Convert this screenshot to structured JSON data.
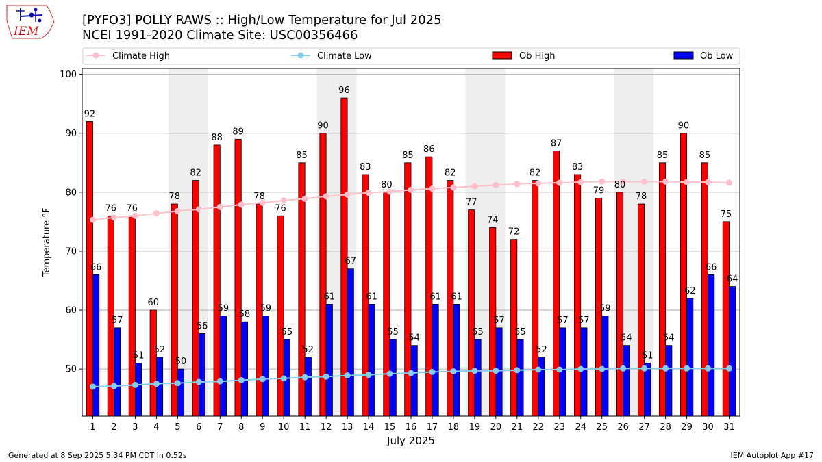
{
  "chart_data": {
    "type": "bar",
    "title": "[PYFO3] POLLY RAWS :: High/Low Temperature for Jul 2025",
    "subtitle": "NCEI 1991-2020 Climate Site: USC00356466",
    "xlabel": "July 2025",
    "ylabel": "Temperature °F",
    "ylim": [
      42,
      101
    ],
    "yticks": [
      50,
      60,
      70,
      80,
      90,
      100
    ],
    "grid": true,
    "legend_position": "top",
    "categories": [
      "1",
      "2",
      "3",
      "4",
      "5",
      "6",
      "7",
      "8",
      "9",
      "10",
      "11",
      "12",
      "13",
      "14",
      "15",
      "16",
      "17",
      "18",
      "19",
      "20",
      "21",
      "22",
      "23",
      "24",
      "25",
      "26",
      "27",
      "28",
      "29",
      "30",
      "31"
    ],
    "weekend_shading": [
      [
        5,
        6
      ],
      [
        12,
        13
      ],
      [
        19,
        20
      ],
      [
        26,
        27
      ]
    ],
    "series": [
      {
        "name": "Ob High",
        "kind": "bar",
        "color": "#ff0000",
        "values": [
          92,
          76,
          76,
          60,
          78,
          82,
          88,
          89,
          78,
          76,
          85,
          90,
          96,
          83,
          80,
          85,
          86,
          82,
          77,
          74,
          72,
          82,
          87,
          83,
          79,
          80,
          78,
          85,
          90,
          85,
          75
        ]
      },
      {
        "name": "Ob Low",
        "kind": "bar",
        "color": "#0000ff",
        "values": [
          66,
          57,
          51,
          52,
          50,
          56,
          59,
          58,
          59,
          55,
          52,
          61,
          67,
          61,
          55,
          54,
          61,
          61,
          55,
          57,
          55,
          52,
          57,
          57,
          59,
          54,
          51,
          54,
          62,
          66,
          64
        ]
      },
      {
        "name": "Climate High",
        "kind": "line",
        "color": "#ffc0cb",
        "values": [
          75.3,
          75.7,
          76.0,
          76.4,
          76.8,
          77.1,
          77.5,
          77.9,
          78.2,
          78.6,
          78.9,
          79.3,
          79.6,
          79.9,
          80.1,
          80.4,
          80.6,
          80.8,
          81.0,
          81.2,
          81.4,
          81.5,
          81.6,
          81.7,
          81.8,
          81.8,
          81.8,
          81.8,
          81.7,
          81.7,
          81.6
        ]
      },
      {
        "name": "Climate Low",
        "kind": "line",
        "color": "#87ceeb",
        "values": [
          47.0,
          47.1,
          47.3,
          47.5,
          47.6,
          47.8,
          47.9,
          48.1,
          48.3,
          48.4,
          48.6,
          48.7,
          48.9,
          49.0,
          49.2,
          49.3,
          49.5,
          49.6,
          49.7,
          49.7,
          49.8,
          49.9,
          49.9,
          50.0,
          50.0,
          50.1,
          50.1,
          50.1,
          50.1,
          50.1,
          50.1
        ]
      }
    ]
  },
  "logo": {
    "text": "IEM"
  },
  "footer": {
    "generated": "Generated at 8 Sep 2025 5:34 PM CDT in 0.52s",
    "app": "IEM Autoplot App #17"
  },
  "colors": {
    "grid": "#b0b0b0",
    "weekend": "#eeeeee",
    "bar_edge": "#000000"
  }
}
